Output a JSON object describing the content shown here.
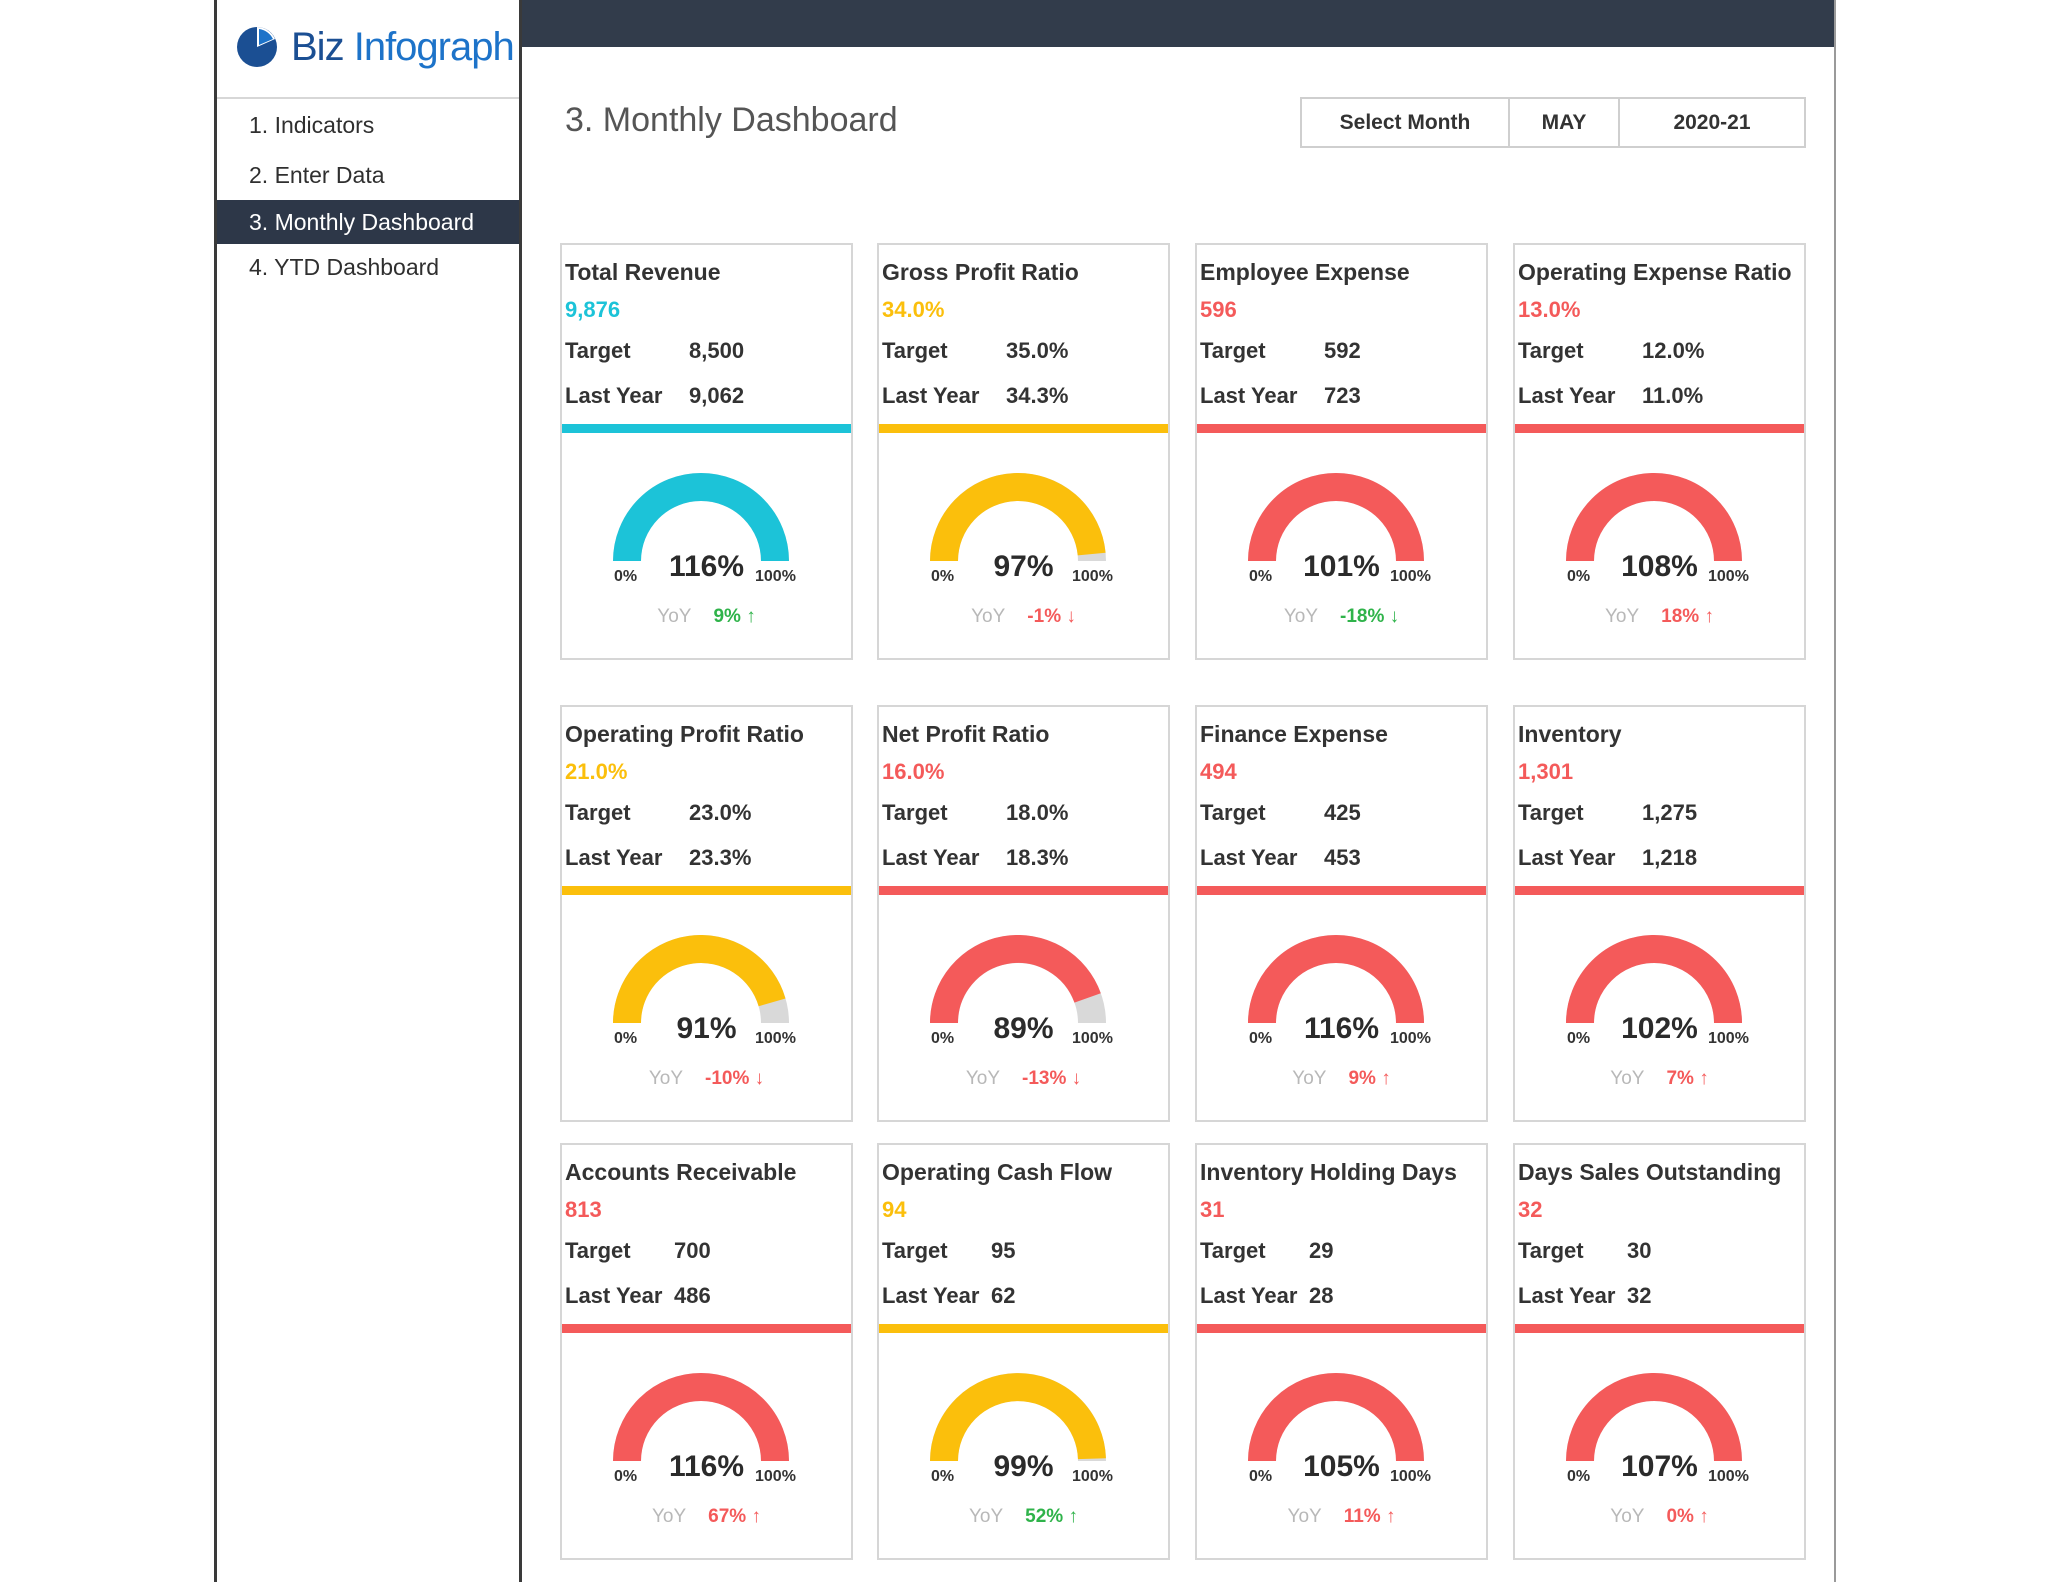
{
  "brand": {
    "name_part1": "Biz",
    "name_part2": "Infograph",
    "logo_icon": "pie-chart-icon"
  },
  "nav": [
    {
      "label": "1. Indicators",
      "active": false
    },
    {
      "label": "2. Enter Data",
      "active": false
    },
    {
      "label": "3. Monthly Dashboard",
      "active": true
    },
    {
      "label": "4. YTD Dashboard",
      "active": false
    }
  ],
  "header": {
    "title": "3. Monthly Dashboard"
  },
  "selector": {
    "label": "Select Month",
    "month": "MAY",
    "year": "2020-21"
  },
  "colors": {
    "cyan": "#1cc3d8",
    "yellow": "#fbbf0c",
    "red": "#f45a5a",
    "green": "#2fb34a",
    "gray_track": "#d9d9d9",
    "nav_active": "#2d3748",
    "topbar": "#323c4b"
  },
  "labels": {
    "target": "Target",
    "last_year": "Last Year",
    "yoy": "YoY",
    "gauge_min": "0%",
    "gauge_max": "100%"
  },
  "cards": [
    {
      "title": "Total Revenue",
      "value": "9,876",
      "target": "8,500",
      "last_year": "9,062",
      "pct": "116%",
      "fill": 1.0,
      "yoy": "9% ↑",
      "color": "cyan",
      "yoy_color": "green"
    },
    {
      "title": "Gross Profit Ratio",
      "value": "34.0%",
      "target": "35.0%",
      "last_year": "34.3%",
      "pct": "97%",
      "fill": 0.97,
      "yoy": "-1% ↓",
      "color": "yellow",
      "yoy_color": "red"
    },
    {
      "title": "Employee Expense",
      "value": "596",
      "target": "592",
      "last_year": "723",
      "pct": "101%",
      "fill": 1.0,
      "yoy": "-18% ↓",
      "color": "red",
      "yoy_color": "green"
    },
    {
      "title": "Operating Expense Ratio",
      "value": "13.0%",
      "target": "12.0%",
      "last_year": "11.0%",
      "pct": "108%",
      "fill": 1.0,
      "yoy": "18% ↑",
      "color": "red",
      "yoy_color": "red"
    },
    {
      "title": "Operating Profit Ratio",
      "value": "21.0%",
      "target": "23.0%",
      "last_year": "23.3%",
      "pct": "91%",
      "fill": 0.91,
      "yoy": "-10% ↓",
      "color": "yellow",
      "yoy_color": "red"
    },
    {
      "title": "Net Profit Ratio",
      "value": "16.0%",
      "target": "18.0%",
      "last_year": "18.3%",
      "pct": "89%",
      "fill": 0.89,
      "yoy": "-13% ↓",
      "color": "red",
      "yoy_color": "red"
    },
    {
      "title": "Finance Expense",
      "value": "494",
      "target": "425",
      "last_year": "453",
      "pct": "116%",
      "fill": 1.0,
      "yoy": "9% ↑",
      "color": "red",
      "yoy_color": "red"
    },
    {
      "title": "Inventory",
      "value": "1,301",
      "target": "1,275",
      "last_year": "1,218",
      "pct": "102%",
      "fill": 1.0,
      "yoy": "7% ↑",
      "color": "red",
      "yoy_color": "red"
    },
    {
      "title": "Accounts Receivable",
      "value": "813",
      "target": "700",
      "last_year": "486",
      "pct": "116%",
      "fill": 1.0,
      "yoy": "67% ↑",
      "color": "red",
      "yoy_color": "red"
    },
    {
      "title": "Operating Cash Flow",
      "value": "94",
      "target": "95",
      "last_year": "62",
      "pct": "99%",
      "fill": 0.99,
      "yoy": "52% ↑",
      "color": "yellow",
      "yoy_color": "green"
    },
    {
      "title": "Inventory Holding Days",
      "value": "31",
      "target": "29",
      "last_year": "28",
      "pct": "105%",
      "fill": 1.0,
      "yoy": "11% ↑",
      "color": "red",
      "yoy_color": "red"
    },
    {
      "title": "Days Sales Outstanding",
      "value": "32",
      "target": "30",
      "last_year": "32",
      "pct": "107%",
      "fill": 1.0,
      "yoy": "0% ↑",
      "color": "red",
      "yoy_color": "red"
    }
  ]
}
